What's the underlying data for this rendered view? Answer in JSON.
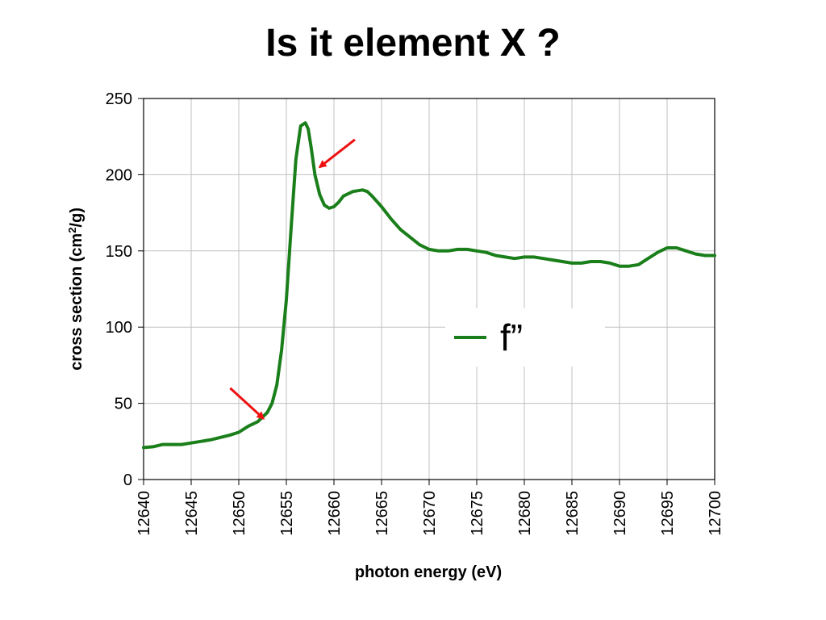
{
  "slide": {
    "title": "Is it element X ?"
  },
  "chart_data": {
    "type": "line",
    "title": "Is it element X ?",
    "xlabel": "photon energy (eV)",
    "ylabel_main": "cross section (cm",
    "ylabel_sup": "2",
    "ylabel_tail": "/g)",
    "xlim": [
      12640,
      12700
    ],
    "ylim": [
      0,
      250
    ],
    "xticks": [
      12640,
      12645,
      12650,
      12655,
      12660,
      12665,
      12670,
      12675,
      12680,
      12685,
      12690,
      12695,
      12700
    ],
    "yticks": [
      0,
      50,
      100,
      150,
      200,
      250
    ],
    "grid": true,
    "legend": {
      "position": "right",
      "entries": [
        "f”"
      ]
    },
    "colors": {
      "series": "#1a7f1a",
      "arrow": "#ee1111",
      "grid": "#c0c0c0"
    },
    "series": [
      {
        "name": "f”",
        "x": [
          12640,
          12641,
          12642,
          12643,
          12644,
          12645,
          12646,
          12647,
          12648,
          12649,
          12650,
          12651,
          12652,
          12652.5,
          12653,
          12653.5,
          12654,
          12654.5,
          12655,
          12655.5,
          12656,
          12656.5,
          12657,
          12657.3,
          12657.6,
          12658,
          12658.5,
          12659,
          12659.5,
          12660,
          12660.5,
          12661,
          12662,
          12663,
          12663.5,
          12664,
          12665,
          12666,
          12667,
          12668,
          12669,
          12670,
          12671,
          12672,
          12673,
          12674,
          12675,
          12676,
          12677,
          12678,
          12679,
          12680,
          12681,
          12682,
          12683,
          12684,
          12685,
          12686,
          12687,
          12688,
          12689,
          12690,
          12691,
          12692,
          12693,
          12694,
          12695,
          12696,
          12697,
          12698,
          12699,
          12700
        ],
        "values": [
          21,
          21.5,
          23,
          23,
          23,
          24,
          25,
          26,
          27.5,
          29,
          31,
          35,
          38,
          41,
          44,
          50,
          62,
          85,
          118,
          165,
          210,
          232,
          234,
          230,
          218,
          200,
          187,
          180,
          178,
          179,
          182,
          186,
          189,
          190,
          189,
          186,
          179,
          171,
          164,
          159,
          154,
          151,
          150,
          150,
          151,
          151,
          150,
          149,
          147,
          146,
          145,
          146,
          146,
          145,
          144,
          143,
          142,
          142,
          143,
          143,
          142,
          140,
          140,
          141,
          145,
          149,
          152,
          152,
          150,
          148,
          147,
          147
        ]
      }
    ],
    "annotations": [
      {
        "type": "arrow",
        "from": [
          12649.1,
          60
        ],
        "to": [
          12652.6,
          40
        ]
      },
      {
        "type": "arrow",
        "from": [
          12662.2,
          223
        ],
        "to": [
          12658.5,
          205
        ]
      }
    ]
  }
}
